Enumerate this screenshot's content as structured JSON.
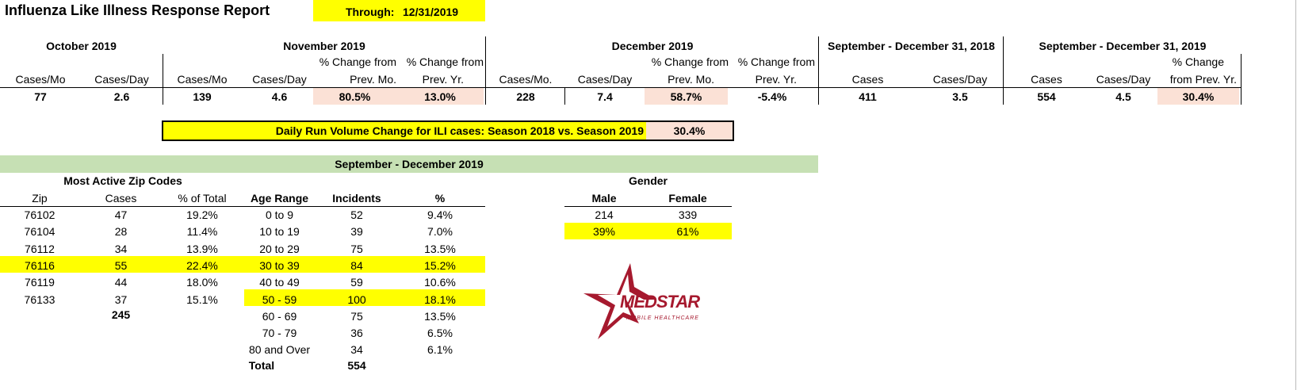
{
  "title": "Influenza Like Illness Response Report",
  "through_label": "Through:",
  "through_date": "12/31/2019",
  "periods": {
    "oct": {
      "label": "October 2019",
      "cols": [
        "Cases/Mo",
        "Cases/Day"
      ],
      "values": [
        "77",
        "2.6"
      ]
    },
    "nov": {
      "label": "November 2019",
      "cols": [
        "Cases/Mo",
        "Cases/Day",
        "% Change from",
        "% Change from"
      ],
      "cols2": [
        "Prev. Mo.",
        "Prev. Yr."
      ],
      "values": [
        "139",
        "4.6",
        "80.5%",
        "13.0%"
      ]
    },
    "dec": {
      "label": "December 2019",
      "cols": [
        "Cases/Mo.",
        "Cases/Day",
        "% Change from",
        "% Change from"
      ],
      "cols2": [
        "Prev. Mo.",
        "Prev. Yr."
      ],
      "values": [
        "228",
        "7.4",
        "58.7%",
        "-5.4%"
      ]
    },
    "s2018": {
      "label": "September - December 31, 2018",
      "cols": [
        "Cases",
        "Cases/Day"
      ],
      "values": [
        "411",
        "3.5"
      ]
    },
    "s2019": {
      "label": "September - December 31, 2019",
      "cols": [
        "Cases",
        "Cases/Day",
        "% Change",
        "from Prev. Yr."
      ],
      "values": [
        "554",
        "4.5",
        "30.4%"
      ]
    }
  },
  "run_volume": {
    "label": "Daily Run Volume Change for ILI cases: Season 2018 vs. Season 2019",
    "value": "30.4%"
  },
  "section_header": "September - December 2019",
  "zip_table": {
    "title": "Most Active Zip Codes",
    "headers": [
      "Zip",
      "Cases",
      "% of Total"
    ],
    "rows": [
      [
        "76102",
        "47",
        "19.2%"
      ],
      [
        "76104",
        "28",
        "11.4%"
      ],
      [
        "76112",
        "34",
        "13.9%"
      ],
      [
        "76116",
        "55",
        "22.4%"
      ],
      [
        "76119",
        "44",
        "18.0%"
      ],
      [
        "76133",
        "37",
        "15.1%"
      ]
    ],
    "total": "245"
  },
  "age_table": {
    "headers": [
      "Age Range",
      "Incidents",
      "%"
    ],
    "rows": [
      [
        "0 to 9",
        "52",
        "9.4%"
      ],
      [
        "10 to 19",
        "39",
        "7.0%"
      ],
      [
        "20 to 29",
        "75",
        "13.5%"
      ],
      [
        "30 to 39",
        "84",
        "15.2%"
      ],
      [
        "40 to 49",
        "59",
        "10.6%"
      ],
      [
        "50 - 59",
        "100",
        "18.1%"
      ],
      [
        "60 - 69",
        "75",
        "13.5%"
      ],
      [
        "70 - 79",
        "36",
        "6.5%"
      ],
      [
        "80 and Over",
        "34",
        "6.1%"
      ]
    ],
    "total_label": "Total",
    "total": "554"
  },
  "gender": {
    "title": "Gender",
    "headers": [
      "Male",
      "Female"
    ],
    "counts": [
      "214",
      "339"
    ],
    "pcts": [
      "39%",
      "61%"
    ]
  },
  "logo": {
    "text": "MEDSTAR",
    "subtext": "MOBILE HEALTHCARE",
    "color": "#a6192e"
  }
}
